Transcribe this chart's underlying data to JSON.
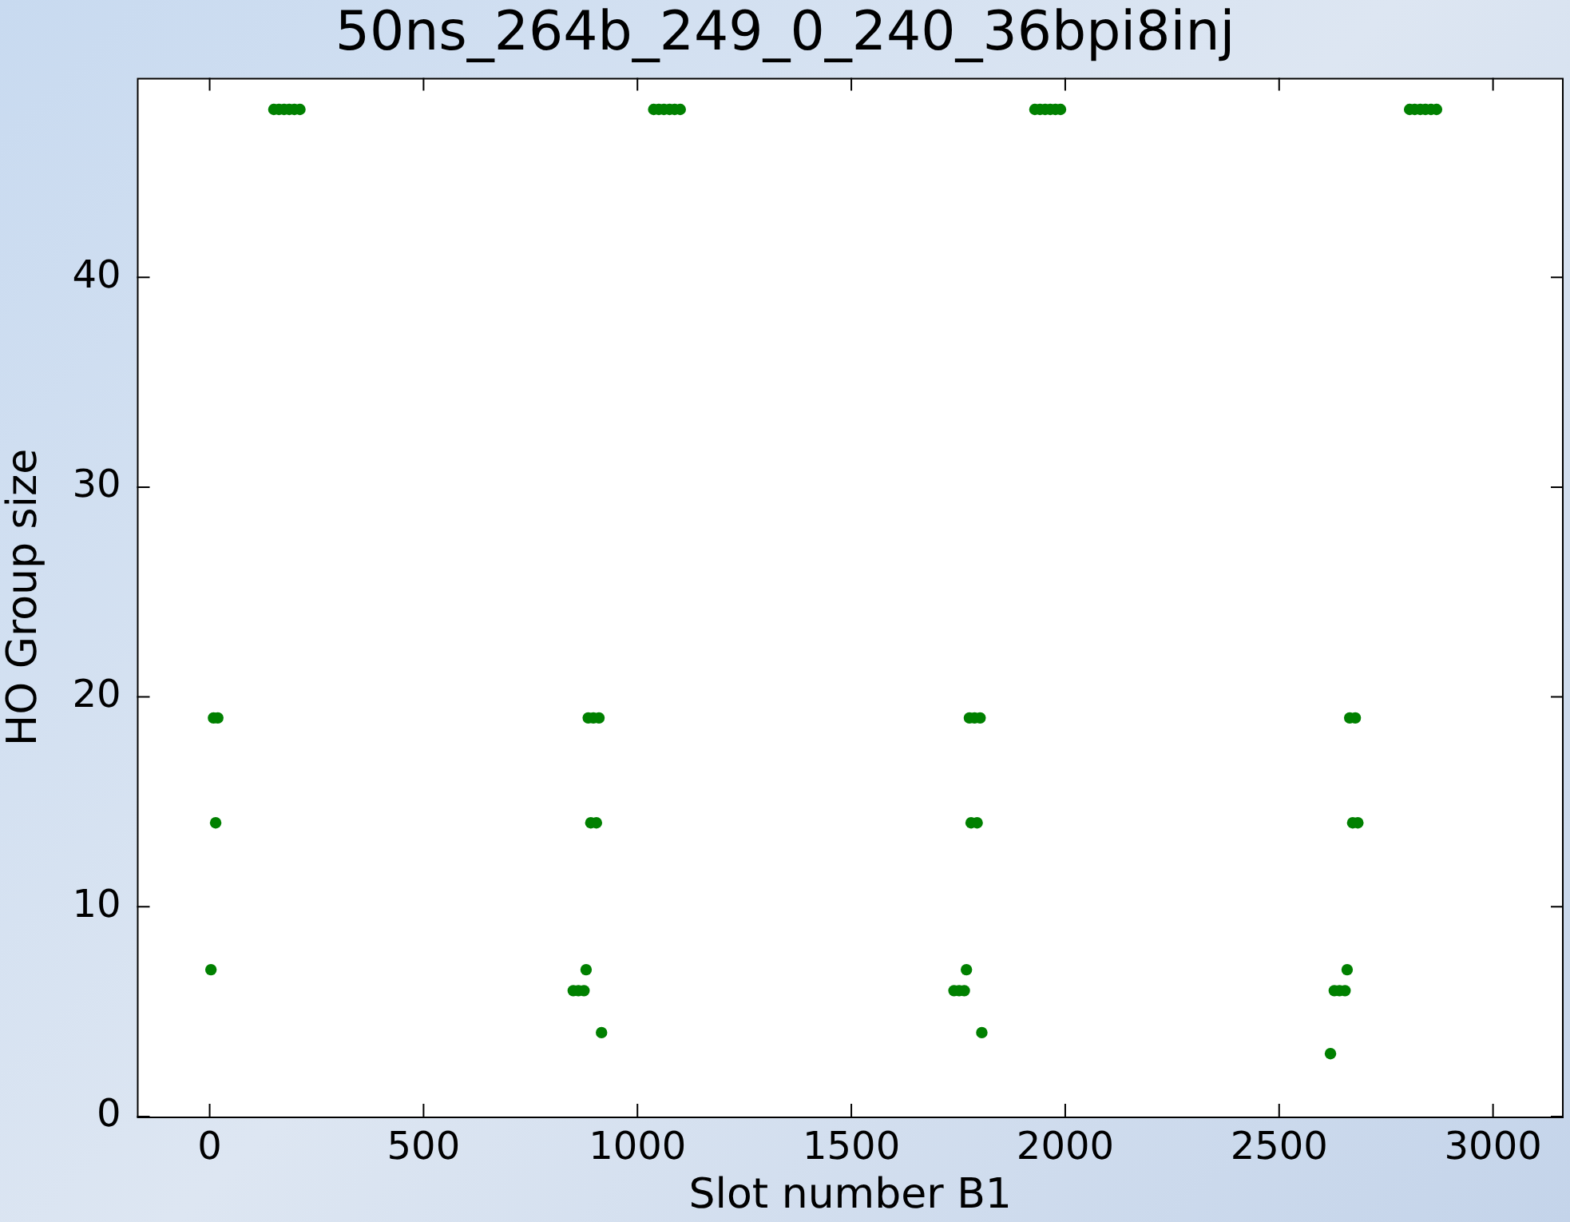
{
  "chart_data": {
    "type": "scatter",
    "title": "50ns_264b_249_0_240_36bpi8inj",
    "xlabel": "Slot number B1",
    "ylabel": "HO Group size",
    "x": [
      9,
      19,
      14,
      3,
      150,
      162,
      174,
      186,
      198,
      211,
      885,
      897,
      910,
      891,
      904,
      880,
      850,
      862,
      875,
      916,
      1038,
      1050,
      1062,
      1075,
      1087,
      1100,
      1776,
      1788,
      1801,
      1780,
      1794,
      1769,
      1740,
      1752,
      1764,
      1805,
      1929,
      1941,
      1953,
      1965,
      1977,
      1989,
      2665,
      2678,
      2672,
      2684,
      2659,
      2629,
      2641,
      2654,
      2620,
      2805,
      2817,
      2830,
      2842,
      2855,
      2868
    ],
    "values": [
      19,
      19,
      14,
      7,
      48,
      48,
      48,
      48,
      48,
      48,
      19,
      19,
      19,
      14,
      14,
      7,
      6,
      6,
      6,
      4,
      48,
      48,
      48,
      48,
      48,
      48,
      19,
      19,
      19,
      14,
      14,
      7,
      6,
      6,
      6,
      4,
      48,
      48,
      48,
      48,
      48,
      48,
      19,
      19,
      14,
      14,
      7,
      6,
      6,
      6,
      3,
      48,
      48,
      48,
      48,
      48,
      48
    ],
    "color": "#008000",
    "marker": "circle",
    "legend": false,
    "grid": false,
    "xlim": [
      -170,
      3165
    ],
    "xticks": [
      0,
      500,
      1000,
      1500,
      2000,
      2500,
      3000
    ],
    "ylim": [
      0,
      49.5
    ],
    "yticks": [
      0,
      10,
      20,
      30,
      40
    ]
  }
}
